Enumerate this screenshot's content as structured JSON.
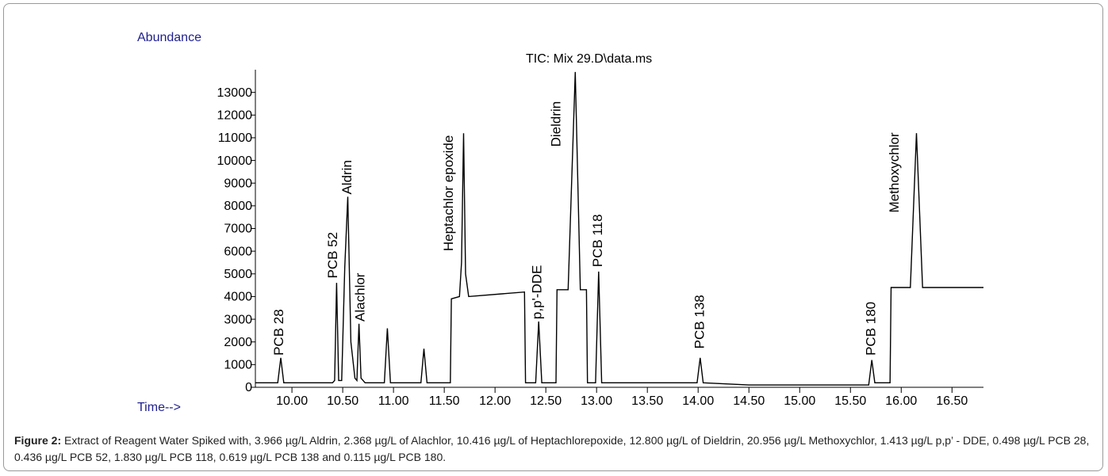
{
  "chart_data": {
    "type": "line",
    "y_label": "Abundance",
    "x_label": "Time-->",
    "annotation": "TIC: Mix 29.D\\data.ms",
    "x": [
      9.64,
      9.86,
      9.89,
      9.92,
      10.4,
      10.42,
      10.44,
      10.46,
      10.49,
      10.52,
      10.55,
      10.58,
      10.62,
      10.64,
      10.66,
      10.68,
      10.72,
      10.91,
      10.94,
      10.97,
      11.27,
      11.3,
      11.33,
      11.56,
      11.57,
      11.65,
      11.67,
      11.69,
      11.71,
      11.74,
      12.29,
      12.3,
      12.31,
      12.4,
      12.43,
      12.46,
      12.6,
      12.61,
      12.72,
      12.79,
      12.84,
      12.9,
      12.91,
      12.99,
      13.02,
      13.05,
      13.99,
      14.02,
      14.05,
      14.5,
      15.68,
      15.71,
      15.74,
      15.89,
      15.9,
      16.09,
      16.15,
      16.21,
      16.81
    ],
    "values": [
      200,
      200,
      1300,
      200,
      200,
      300,
      4600,
      300,
      300,
      5300,
      8400,
      2000,
      400,
      300,
      2800,
      400,
      200,
      200,
      2600,
      200,
      200,
      1700,
      200,
      200,
      3900,
      4000,
      5500,
      11200,
      5000,
      4000,
      4200,
      200,
      200,
      200,
      2900,
      200,
      200,
      4300,
      4300,
      13900,
      4300,
      4300,
      200,
      200,
      5100,
      200,
      200,
      1300,
      200,
      100,
      100,
      1200,
      200,
      200,
      4400,
      4400,
      11200,
      4400,
      4400
    ],
    "color": "#000000",
    "xlim": [
      9.64,
      16.81
    ],
    "ylim": [
      0,
      14000
    ],
    "xticks": [
      {
        "value": 10,
        "label": "10.00"
      },
      {
        "value": 10.5,
        "label": "10.50"
      },
      {
        "value": 11,
        "label": "11.00"
      },
      {
        "value": 11.5,
        "label": "11.50"
      },
      {
        "value": 12,
        "label": "12.00"
      },
      {
        "value": 12.5,
        "label": "12.50"
      },
      {
        "value": 13,
        "label": "13.00"
      },
      {
        "value": 13.5,
        "label": "13.50"
      },
      {
        "value": 14,
        "label": "14.00"
      },
      {
        "value": 14.5,
        "label": "14.50"
      },
      {
        "value": 15,
        "label": "15.00"
      },
      {
        "value": 15.5,
        "label": "15.50"
      },
      {
        "value": 16,
        "label": "16.00"
      },
      {
        "value": 16.5,
        "label": "16.50"
      }
    ],
    "yticks": [
      0,
      1000,
      2000,
      3000,
      4000,
      5000,
      6000,
      7000,
      8000,
      9000,
      10000,
      11000,
      12000,
      13000
    ],
    "peak_labels": [
      {
        "text": "PCB 28",
        "x": 9.88,
        "y": 1400
      },
      {
        "text": "PCB 52",
        "x": 10.41,
        "y": 4800
      },
      {
        "text": "Aldrin",
        "x": 10.55,
        "y": 8500
      },
      {
        "text": "Alachlor",
        "x": 10.68,
        "y": 2900
      },
      {
        "text": "Heptachlor epoxide",
        "x": 11.55,
        "y": 6000
      },
      {
        "text": "p,p'-DDE",
        "x": 12.42,
        "y": 3000
      },
      {
        "text": "Dieldrin",
        "x": 12.61,
        "y": 10600
      },
      {
        "text": "PCB 118",
        "x": 13.02,
        "y": 5300
      },
      {
        "text": "PCB 138",
        "x": 14.02,
        "y": 1700
      },
      {
        "text": "PCB 180",
        "x": 15.71,
        "y": 1400
      },
      {
        "text": "Methoxychlor",
        "x": 15.94,
        "y": 7700
      }
    ],
    "caption": {
      "label": "Figure 2:",
      "text": " Extract of Reagent Water Spiked with, 3.966 µg/L Aldrin, 2.368 µg/L of Alachlor, 10.416 µg/L of Heptachlorepoxide, 12.800 µg/L of Dieldrin, 20.956 µg/L Methoxychlor, 1.413 µg/L p,p’ - DDE, 0.498 µg/L PCB 28, 0.436 µg/L PCB 52, 1.830 µg/L PCB 118, 0.619 µg/L PCB 138 and 0.115 µg/L PCB 180."
    }
  }
}
